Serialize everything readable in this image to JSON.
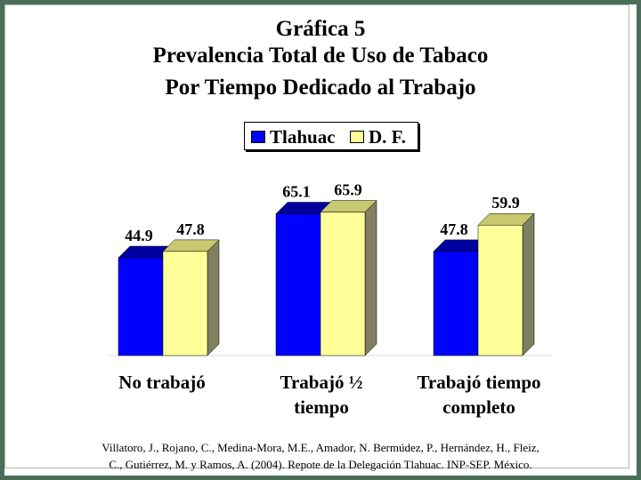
{
  "title": {
    "line1": "Gráfica 5",
    "line2": "Prevalencia Total de Uso de Tabaco",
    "line3": "Por Tiempo Dedicado al Trabajo"
  },
  "colors": {
    "tlahuac": "#0000ff",
    "df": "#ffff99",
    "frame": "#4a6e5a",
    "side_shade": "#808060"
  },
  "chart_data": {
    "type": "bar",
    "categories": [
      "No trabajó",
      "Trabajó ½\ntiempo",
      "Trabajó tiempo\ncompleto"
    ],
    "series": [
      {
        "name": "Tlahuac",
        "values": [
          44.9,
          65.1,
          47.8
        ]
      },
      {
        "name": "D. F.",
        "values": [
          47.8,
          65.9,
          59.9
        ]
      }
    ],
    "value_labels": [
      [
        "44.9",
        "65.1",
        "47.8"
      ],
      [
        "47.8",
        "65.9",
        "59.9"
      ]
    ],
    "legend_position": "top-center",
    "grid": false,
    "three_d": true
  },
  "source": {
    "line1": "Villatoro, J., Rojano, C., Medina-Mora, M.E., Amador, N. Bermúdez, P., Hernández, H., Fleiz,",
    "line2": "C., Gutiérrez, M. y Ramos, A. (2004). Repote de la Delegación Tlahuac. INP-SEP. México."
  }
}
